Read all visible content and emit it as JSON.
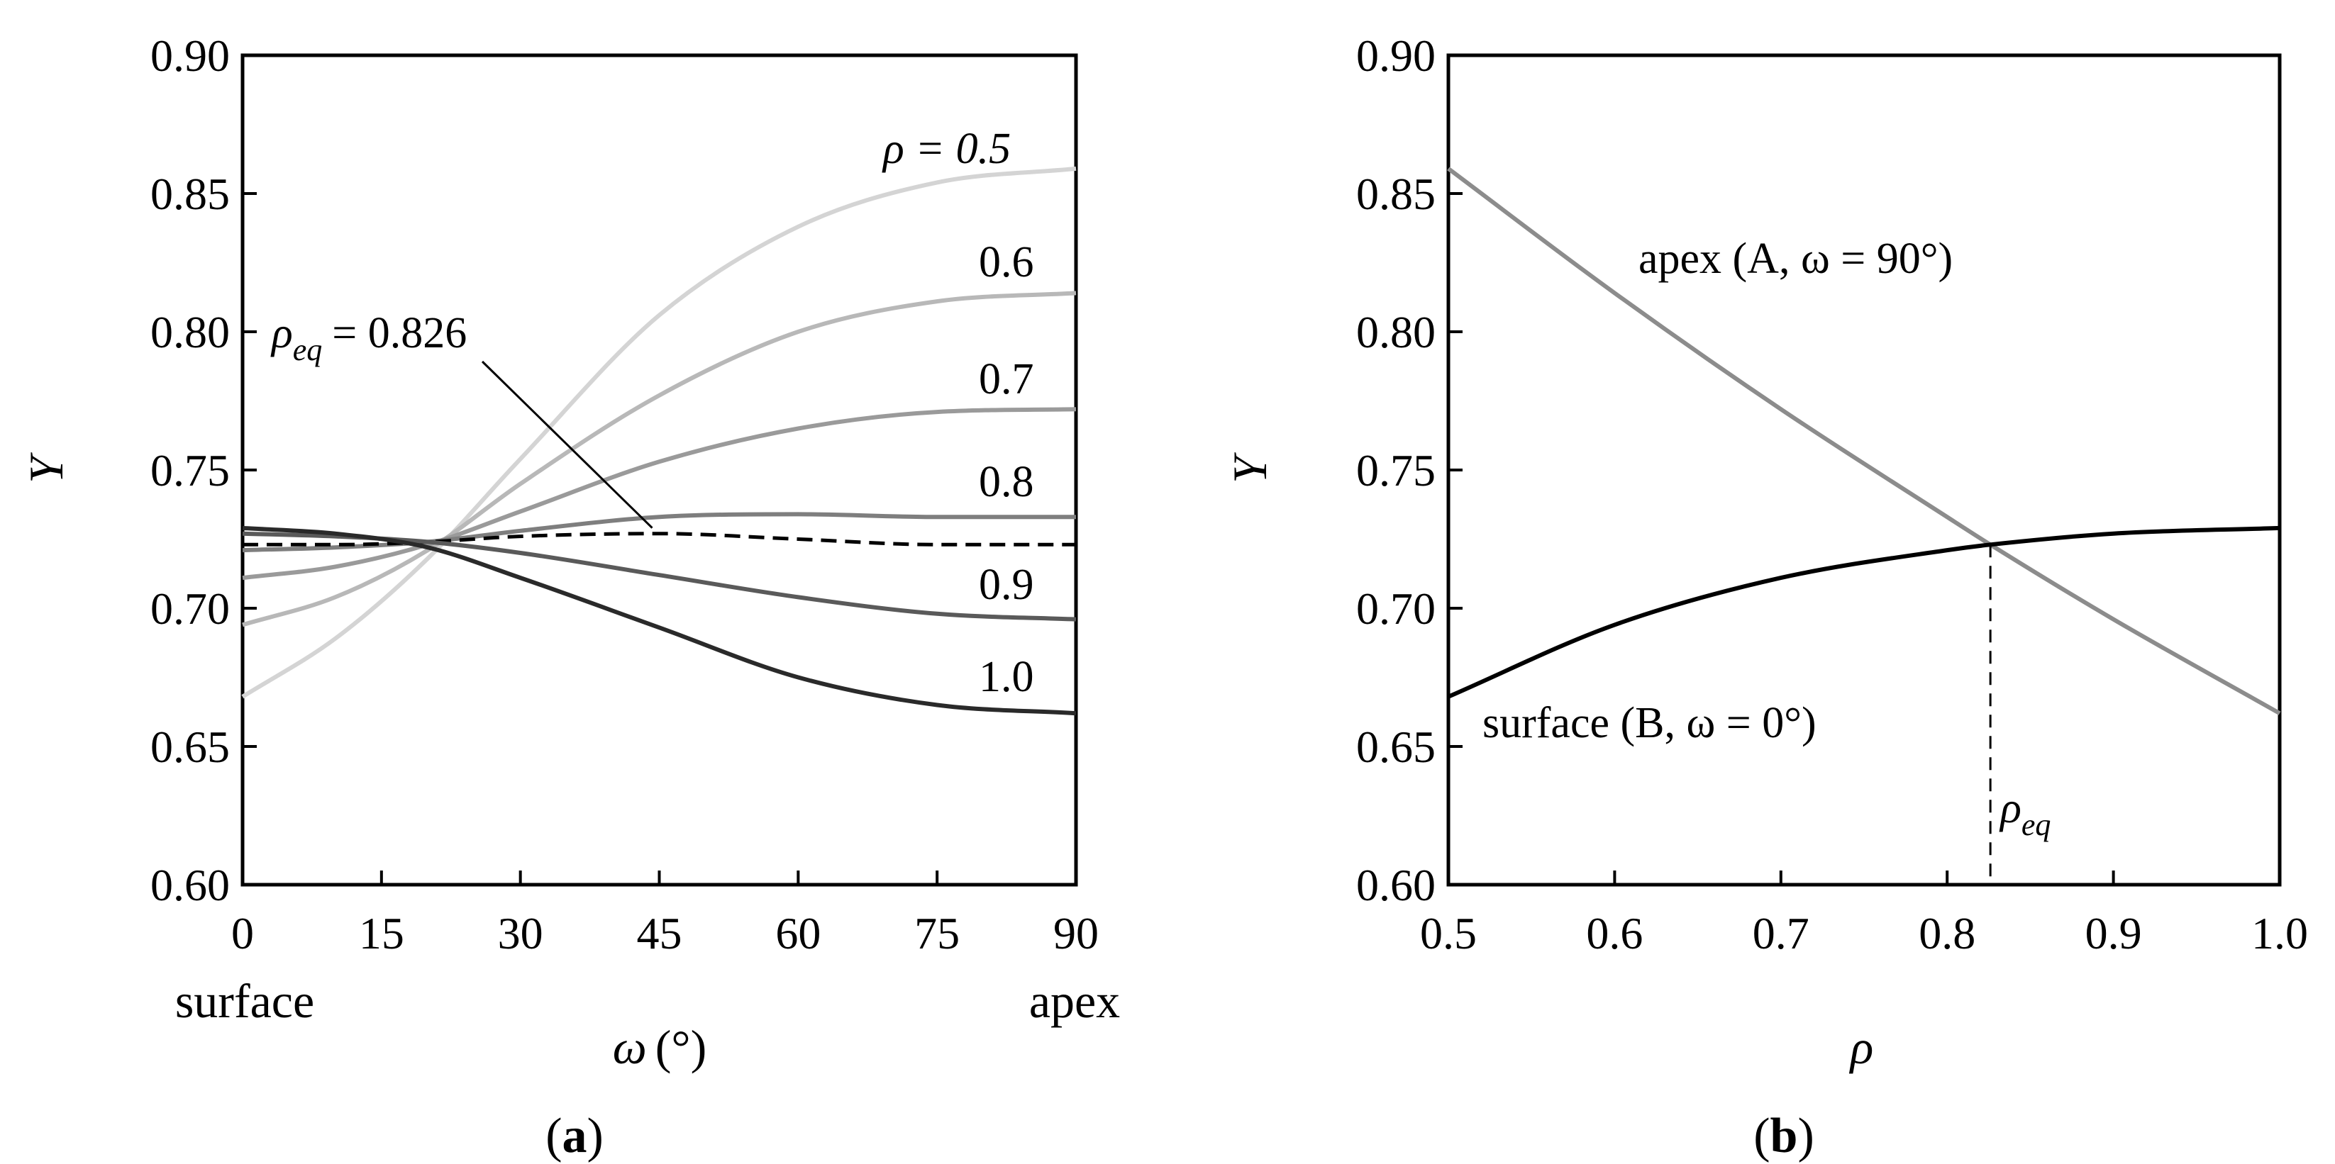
{
  "chart_data": [
    {
      "type": "line",
      "panel_label": "a",
      "xlabel": "ω",
      "xunit": "(°)",
      "ylabel": "Y",
      "xlim": [
        0,
        90
      ],
      "ylim": [
        0.6,
        0.9
      ],
      "x_ticks": [
        "0",
        "15",
        "30",
        "45",
        "60",
        "75",
        "90"
      ],
      "y_ticks": [
        "0.60",
        "0.65",
        "0.70",
        "0.75",
        "0.80",
        "0.85",
        "0.90"
      ],
      "x_end_labels": {
        "left": "surface",
        "right": "apex"
      },
      "grid": false,
      "x": [
        0,
        10,
        20,
        30,
        45,
        60,
        75,
        90
      ],
      "series": [
        {
          "name": "0.5",
          "label": "ρ = 0.5",
          "color": "#d4d4d4",
          "dash": false,
          "values": [
            0.668,
            0.689,
            0.718,
            0.754,
            0.806,
            0.838,
            0.854,
            0.859
          ]
        },
        {
          "name": "0.6",
          "label": "0.6",
          "color": "#b8b8b8",
          "dash": false,
          "values": [
            0.694,
            0.704,
            0.721,
            0.745,
            0.777,
            0.8,
            0.811,
            0.814
          ]
        },
        {
          "name": "0.7",
          "label": "0.7",
          "color": "#9a9a9a",
          "dash": false,
          "values": [
            0.711,
            0.715,
            0.723,
            0.735,
            0.753,
            0.765,
            0.771,
            0.772
          ]
        },
        {
          "name": "0.8",
          "label": "0.8",
          "color": "#7e7e7e",
          "dash": false,
          "values": [
            0.721,
            0.722,
            0.724,
            0.728,
            0.733,
            0.734,
            0.733,
            0.733
          ]
        },
        {
          "name": "ρeq",
          "label": "ρeq = 0.826",
          "color": "#000000",
          "dash": true,
          "values": [
            0.723,
            0.723,
            0.724,
            0.726,
            0.727,
            0.725,
            0.723,
            0.723
          ]
        },
        {
          "name": "0.9",
          "label": "0.9",
          "color": "#5a5a5a",
          "dash": false,
          "values": [
            0.727,
            0.726,
            0.724,
            0.72,
            0.712,
            0.704,
            0.698,
            0.696
          ]
        },
        {
          "name": "1.0",
          "label": "1.0",
          "color": "#2a2a2a",
          "dash": false,
          "values": [
            0.729,
            0.727,
            0.722,
            0.711,
            0.693,
            0.675,
            0.665,
            0.662
          ]
        }
      ],
      "annotations": {
        "rho_label": "ρ = 0.5",
        "rho_eq_symbol": "ρ",
        "rho_eq_sub": "eq",
        "rho_eq_value": "= 0.826",
        "pointer_to": [
          45,
          0.727
        ]
      }
    },
    {
      "type": "line",
      "panel_label": "b",
      "xlabel": "ρ",
      "ylabel": "Y",
      "xlim": [
        0.5,
        1.0
      ],
      "ylim": [
        0.6,
        0.9
      ],
      "x_ticks": [
        "0.5",
        "0.6",
        "0.7",
        "0.8",
        "0.9",
        "1.0"
      ],
      "y_ticks": [
        "0.60",
        "0.65",
        "0.70",
        "0.75",
        "0.80",
        "0.85",
        "0.90"
      ],
      "grid": false,
      "x": [
        0.5,
        0.6,
        0.7,
        0.8,
        0.826,
        0.9,
        1.0
      ],
      "series": [
        {
          "name": "apex",
          "label": "apex (A, ω = 90°)",
          "color": "#8c8c8c",
          "values": [
            0.859,
            0.814,
            0.772,
            0.733,
            0.723,
            0.696,
            0.662
          ]
        },
        {
          "name": "surface",
          "label": "surface (B, ω = 0°)",
          "color": "#000000",
          "values": [
            0.668,
            0.694,
            0.711,
            0.721,
            0.723,
            0.727,
            0.729
          ]
        }
      ],
      "crossing": {
        "x": 0.826,
        "y": 0.723,
        "label_symbol": "ρ",
        "label_sub": "eq"
      }
    }
  ]
}
